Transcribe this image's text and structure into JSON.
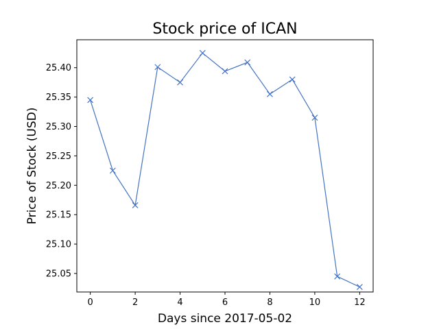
{
  "chart_data": {
    "type": "line",
    "title": "Stock price of ICAN",
    "xlabel": "Days since 2017-05-02",
    "ylabel": "Price of Stock (USD)",
    "xlim": [
      -0.6,
      12.6
    ],
    "ylim": [
      25.0185,
      25.4475
    ],
    "xticks": [
      0,
      2,
      4,
      6,
      8,
      10,
      12
    ],
    "yticks": [
      25.05,
      25.1,
      25.15,
      25.2,
      25.25,
      25.3,
      25.35,
      25.4
    ],
    "ytick_decimals": 2,
    "grid": false,
    "marker": "x",
    "series": [
      {
        "color": "#4472c4",
        "x": [
          0,
          1,
          2,
          3,
          4,
          5,
          6,
          7,
          8,
          9,
          10,
          11,
          12
        ],
        "y": [
          25.345,
          25.225,
          25.166,
          25.401,
          25.375,
          25.425,
          25.394,
          25.409,
          25.355,
          25.38,
          25.315,
          25.045,
          25.027
        ]
      }
    ]
  }
}
